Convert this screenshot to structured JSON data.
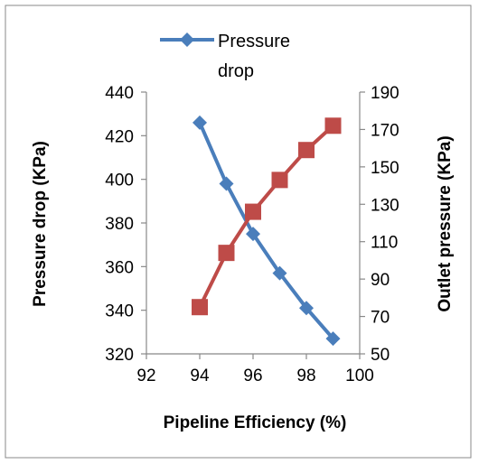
{
  "chart_data": {
    "type": "line",
    "xlabel": "Pipeline Efficiency (%)",
    "ylabel_left": "Pressure drop (KPa)",
    "ylabel_right": "Outlet pressure (KPa)",
    "xlim": [
      92,
      100
    ],
    "ylim_left": [
      320,
      440
    ],
    "ylim_right": [
      50,
      190
    ],
    "x_ticks": [
      92,
      94,
      96,
      98,
      100
    ],
    "y_ticks_left": [
      320,
      340,
      360,
      380,
      400,
      420,
      440
    ],
    "y_ticks_right": [
      50,
      70,
      90,
      110,
      130,
      150,
      170,
      190
    ],
    "grid": false,
    "legend_position": "top",
    "series": [
      {
        "name": "Pressure drop",
        "axis": "left",
        "color": "#4a7ebb",
        "marker": "diamond",
        "x": [
          94,
          95,
          96,
          97,
          98,
          99
        ],
        "y": [
          426,
          398,
          375,
          357,
          341,
          327
        ]
      },
      {
        "axis": "right",
        "color": "#be4b48",
        "marker": "square",
        "x": [
          94,
          95,
          96,
          97,
          98,
          99
        ],
        "y": [
          75,
          104,
          126,
          143,
          159,
          172
        ]
      }
    ],
    "legend_lines": [
      "Pressure",
      "drop"
    ]
  }
}
